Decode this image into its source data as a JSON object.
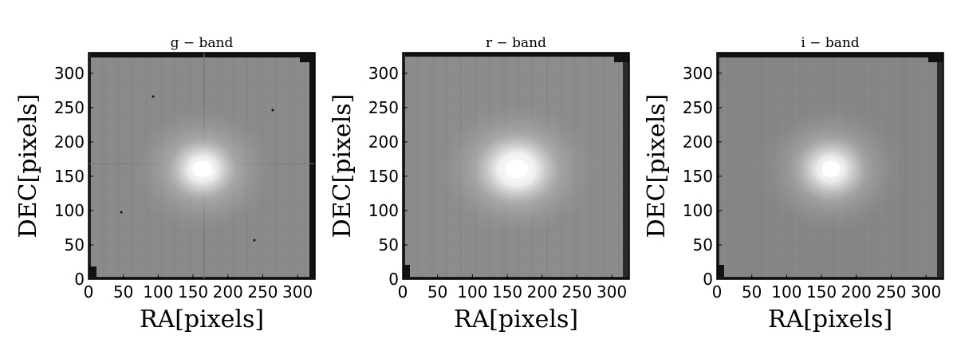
{
  "figure": {
    "panels": [
      {
        "title": "g − band",
        "xlabel": "RA[pixels]",
        "ylabel": "DEC[pixels]"
      },
      {
        "title": "r − band",
        "xlabel": "RA[pixels]",
        "ylabel": "DEC[pixels]"
      },
      {
        "title": "i − band",
        "xlabel": "RA[pixels]",
        "ylabel": "DEC[pixels]"
      }
    ],
    "x_ticks": [
      "0",
      "50",
      "100",
      "150",
      "200",
      "250",
      "300"
    ],
    "y_ticks": [
      "0",
      "50",
      "100",
      "150",
      "200",
      "250",
      "300"
    ],
    "x_range": [
      0,
      325
    ],
    "y_range": [
      0,
      330
    ],
    "colormap": "grayscale",
    "colors": {
      "background_sky": "#8a8a8a",
      "border": "#000000",
      "core": "#ffffff"
    }
  }
}
